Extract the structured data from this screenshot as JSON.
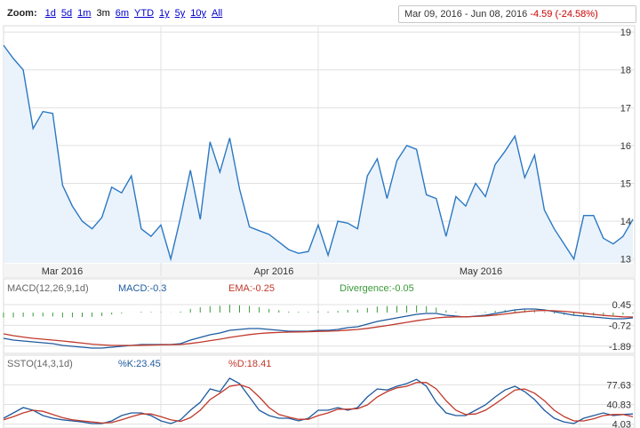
{
  "zoom": {
    "label": "Zoom:",
    "options": [
      "1d",
      "5d",
      "1m",
      "3m",
      "6m",
      "YTD",
      "1y",
      "5y",
      "10y",
      "All"
    ],
    "selected": "3m"
  },
  "range": {
    "start": "Mar 09, 2016",
    "sep": "-",
    "end": "Jun 08, 2016",
    "change": "-4.59 (-24.58%)"
  },
  "colors": {
    "price_line": "#2c78c3",
    "price_fill": "#eaf3fb",
    "macd_line": "#1e5a9e",
    "ema_line": "#c0392b",
    "divergence": "#3a9a3a",
    "grid": "#e0e0e0"
  },
  "indicators": {
    "macd": {
      "label": "MACD(12,26,9,1d)",
      "macd_label": "MACD:-0.3",
      "ema_label": "EMA:-0.25",
      "div_label": "Divergence:-0.05"
    },
    "ssto": {
      "label": "SSTO(14,3,1d)",
      "k_label": "%K:23.45",
      "d_label": "%D:18.41"
    }
  },
  "chart_data": [
    {
      "type": "area",
      "x_labels": [
        "Mar 2016",
        "Apr 2016",
        "May 2016"
      ],
      "y_ticks": [
        "19",
        "18",
        "17",
        "16",
        "15",
        "14",
        "13"
      ],
      "ylim": [
        12.9,
        19.05
      ],
      "values": [
        18.65,
        18.3,
        18.0,
        16.45,
        16.9,
        16.85,
        14.95,
        14.4,
        14.0,
        13.8,
        14.1,
        14.9,
        14.75,
        15.2,
        13.8,
        13.6,
        13.9,
        13.0,
        14.1,
        15.35,
        14.05,
        16.1,
        15.3,
        16.2,
        14.85,
        13.85,
        13.75,
        13.65,
        13.45,
        13.25,
        13.15,
        13.2,
        13.9,
        13.1,
        14.0,
        13.95,
        13.8,
        15.2,
        15.65,
        14.6,
        15.6,
        16.0,
        15.9,
        14.7,
        14.6,
        13.6,
        14.65,
        14.4,
        15.0,
        14.65,
        15.5,
        15.85,
        16.25,
        15.15,
        15.75,
        14.3,
        13.8,
        13.4,
        13.0,
        14.15,
        14.15,
        13.55,
        13.4,
        13.6,
        14.05
      ]
    },
    {
      "type": "line",
      "y_ticks": [
        "0.45",
        "-0.72",
        "-1.89"
      ],
      "ylim": [
        -2.2,
        0.8
      ],
      "series": [
        {
          "name": "MACD",
          "values": [
            -1.45,
            -1.55,
            -1.6,
            -1.65,
            -1.7,
            -1.75,
            -1.85,
            -1.9,
            -1.95,
            -2.0,
            -2.0,
            -1.95,
            -1.9,
            -1.85,
            -1.8,
            -1.8,
            -1.8,
            -1.8,
            -1.75,
            -1.55,
            -1.4,
            -1.25,
            -1.15,
            -1.0,
            -0.95,
            -0.9,
            -0.9,
            -0.95,
            -1.0,
            -1.05,
            -1.05,
            -1.05,
            -1.0,
            -1.0,
            -0.95,
            -0.85,
            -0.8,
            -0.65,
            -0.5,
            -0.4,
            -0.3,
            -0.2,
            -0.1,
            -0.05,
            -0.05,
            -0.15,
            -0.2,
            -0.25,
            -0.2,
            -0.15,
            -0.05,
            0.05,
            0.15,
            0.2,
            0.2,
            0.15,
            0.05,
            -0.05,
            -0.15,
            -0.2,
            -0.25,
            -0.3,
            -0.35,
            -0.35,
            -0.3
          ]
        },
        {
          "name": "EMA",
          "values": [
            -1.2,
            -1.3,
            -1.38,
            -1.45,
            -1.5,
            -1.55,
            -1.6,
            -1.66,
            -1.72,
            -1.78,
            -1.82,
            -1.85,
            -1.85,
            -1.85,
            -1.84,
            -1.83,
            -1.82,
            -1.81,
            -1.8,
            -1.74,
            -1.67,
            -1.58,
            -1.5,
            -1.4,
            -1.32,
            -1.24,
            -1.18,
            -1.14,
            -1.12,
            -1.1,
            -1.09,
            -1.08,
            -1.06,
            -1.05,
            -1.03,
            -0.99,
            -0.95,
            -0.89,
            -0.81,
            -0.73,
            -0.64,
            -0.55,
            -0.46,
            -0.38,
            -0.3,
            -0.26,
            -0.24,
            -0.24,
            -0.22,
            -0.19,
            -0.14,
            -0.08,
            -0.01,
            0.05,
            0.1,
            0.12,
            0.1,
            0.07,
            0.02,
            -0.04,
            -0.1,
            -0.16,
            -0.2,
            -0.24,
            -0.25
          ]
        },
        {
          "name": "Divergence",
          "type": "bar",
          "values": [
            -0.25,
            -0.25,
            -0.22,
            -0.2,
            -0.2,
            -0.2,
            -0.25,
            -0.24,
            -0.23,
            -0.22,
            -0.18,
            -0.1,
            -0.05,
            0.0,
            0.04,
            0.03,
            0.02,
            0.01,
            0.05,
            0.19,
            0.27,
            0.33,
            0.35,
            0.4,
            0.37,
            0.34,
            0.28,
            0.19,
            0.12,
            0.05,
            0.04,
            0.03,
            0.06,
            0.05,
            0.08,
            0.14,
            0.15,
            0.24,
            0.31,
            0.33,
            0.34,
            0.35,
            0.36,
            0.33,
            0.25,
            0.11,
            0.04,
            -0.01,
            0.02,
            0.04,
            0.09,
            0.13,
            0.16,
            0.15,
            0.1,
            0.03,
            -0.05,
            -0.12,
            -0.17,
            -0.16,
            -0.15,
            -0.14,
            -0.15,
            -0.11,
            -0.05
          ]
        }
      ]
    },
    {
      "type": "line",
      "y_ticks": [
        "77.63",
        "40.83",
        "4.03"
      ],
      "ylim": [
        0,
        100
      ],
      "series": [
        {
          "name": "%K",
          "values": [
            15,
            25,
            35,
            30,
            20,
            15,
            12,
            10,
            8,
            5,
            5,
            10,
            20,
            25,
            25,
            20,
            10,
            5,
            12,
            30,
            45,
            70,
            65,
            90,
            80,
            55,
            30,
            20,
            15,
            15,
            10,
            15,
            30,
            30,
            35,
            30,
            35,
            55,
            70,
            68,
            75,
            80,
            88,
            75,
            45,
            25,
            20,
            20,
            30,
            40,
            55,
            68,
            75,
            65,
            50,
            30,
            15,
            8,
            5,
            15,
            20,
            25,
            20,
            22,
            23
          ]
        },
        {
          "name": "%D",
          "values": [
            12,
            18,
            25,
            30,
            28,
            22,
            16,
            12,
            10,
            8,
            6,
            7,
            12,
            18,
            23,
            23,
            18,
            12,
            9,
            16,
            30,
            50,
            62,
            75,
            78,
            72,
            55,
            35,
            22,
            17,
            13,
            13,
            20,
            25,
            32,
            32,
            33,
            40,
            55,
            65,
            72,
            75,
            82,
            82,
            70,
            48,
            30,
            22,
            23,
            30,
            42,
            55,
            68,
            70,
            62,
            48,
            30,
            18,
            10,
            10,
            14,
            20,
            22,
            22,
            18
          ]
        }
      ]
    }
  ]
}
